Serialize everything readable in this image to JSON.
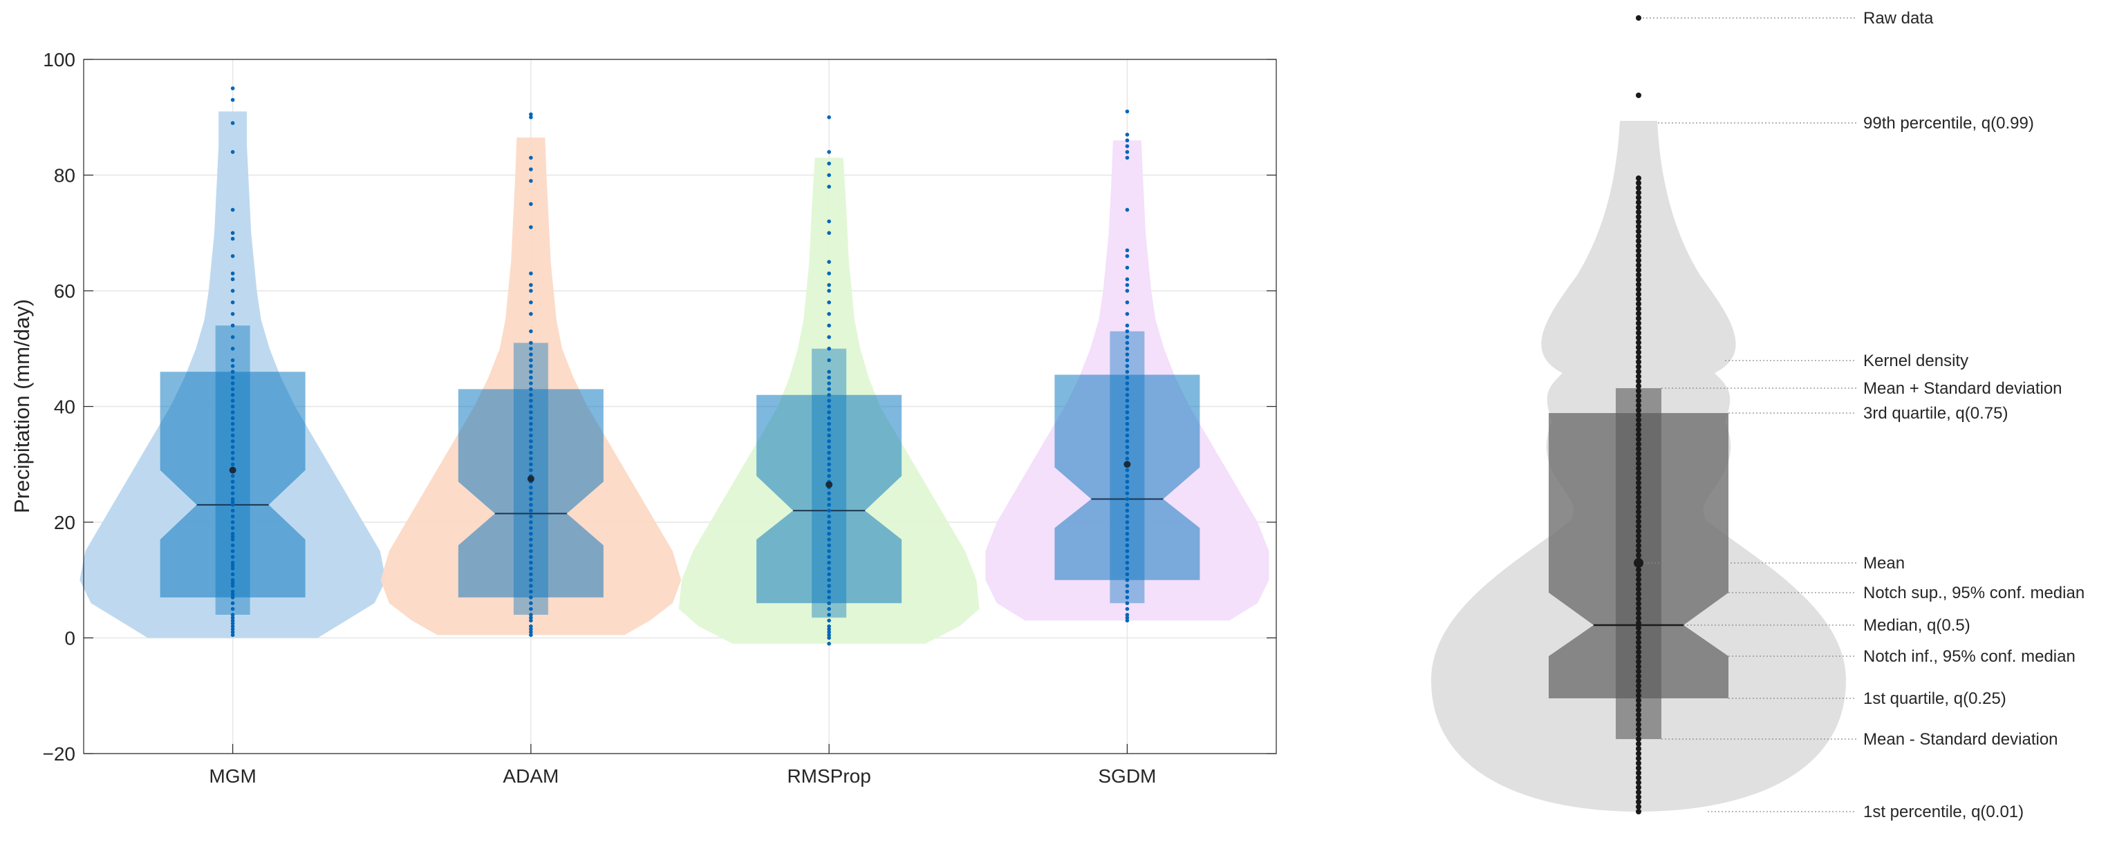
{
  "chart_data": [
    {
      "type": "violin",
      "title": "",
      "xlabel": "",
      "ylabel": "Precipitation (mm/day)",
      "ylim": [
        -20,
        100
      ],
      "yticks": [
        -20,
        0,
        20,
        40,
        60,
        80,
        100
      ],
      "ytick_labels": [
        "−20",
        "0",
        "20",
        "40",
        "60",
        "80",
        "100"
      ],
      "grid": true,
      "categories": [
        "MGM",
        "ADAM",
        "RMSProp",
        "SGDM"
      ],
      "series": [
        {
          "category": "MGM",
          "color": "#0072BD",
          "violin_color": "#BBD7EE",
          "p01": 0,
          "p99": 91,
          "q1": 7,
          "median": 23,
          "q3": 46,
          "notch_low": 17,
          "notch_high": 29,
          "mean": 29,
          "mean_minus_sd": 4,
          "mean_plus_sd": 54,
          "density": [
            [
              0,
              0.3
            ],
            [
              3,
              0.4
            ],
            [
              6,
              0.5
            ],
            [
              10,
              0.54
            ],
            [
              15,
              0.52
            ],
            [
              20,
              0.46
            ],
            [
              25,
              0.4
            ],
            [
              30,
              0.34
            ],
            [
              35,
              0.28
            ],
            [
              40,
              0.22
            ],
            [
              45,
              0.17
            ],
            [
              50,
              0.13
            ],
            [
              55,
              0.1
            ],
            [
              60,
              0.085
            ],
            [
              65,
              0.075
            ],
            [
              70,
              0.065
            ],
            [
              75,
              0.06
            ],
            [
              80,
              0.055
            ],
            [
              85,
              0.05
            ],
            [
              91,
              0.05
            ]
          ],
          "raw_data": [
            0.5,
            1,
            1.5,
            2,
            2.5,
            3,
            3.5,
            4,
            5,
            6,
            7,
            7.5,
            8,
            9,
            9.5,
            10,
            11,
            12,
            12.5,
            13,
            14,
            15,
            16,
            17,
            17.5,
            18,
            19,
            20,
            21,
            22,
            23,
            23.5,
            24,
            25,
            26,
            27,
            28,
            29,
            30,
            31,
            32,
            33,
            34,
            35,
            36,
            37,
            38,
            39,
            40,
            41,
            42,
            43,
            44,
            45,
            46,
            47,
            48,
            50,
            52,
            54,
            56,
            58,
            60,
            62,
            63,
            66,
            69,
            70,
            74,
            84,
            89,
            93,
            95
          ]
        },
        {
          "category": "ADAM",
          "color": "#0072BD",
          "violin_color": "#FCD9C6",
          "p01": 0.5,
          "p99": 86.5,
          "q1": 7,
          "median": 21.5,
          "q3": 43,
          "notch_low": 16,
          "notch_high": 27,
          "mean": 27.5,
          "mean_minus_sd": 4,
          "mean_plus_sd": 51,
          "density": [
            [
              0.5,
              0.33
            ],
            [
              3,
              0.42
            ],
            [
              6,
              0.5
            ],
            [
              10,
              0.53
            ],
            [
              15,
              0.5
            ],
            [
              20,
              0.44
            ],
            [
              25,
              0.38
            ],
            [
              30,
              0.32
            ],
            [
              35,
              0.26
            ],
            [
              40,
              0.2
            ],
            [
              45,
              0.15
            ],
            [
              50,
              0.11
            ],
            [
              55,
              0.09
            ],
            [
              60,
              0.08
            ],
            [
              65,
              0.07
            ],
            [
              70,
              0.065
            ],
            [
              75,
              0.06
            ],
            [
              80,
              0.055
            ],
            [
              86.5,
              0.05
            ]
          ],
          "raw_data": [
            0.5,
            1,
            1.5,
            2,
            3,
            3.5,
            4,
            5,
            6,
            7,
            8,
            9,
            10,
            11,
            12,
            13,
            14,
            15,
            16,
            17,
            18,
            19,
            20,
            21,
            22,
            23,
            24,
            25,
            26,
            27,
            28,
            29,
            30,
            31,
            32,
            33,
            34,
            35,
            36,
            37,
            38,
            39,
            40,
            41,
            42,
            43,
            44,
            45,
            46,
            47,
            48,
            49,
            50,
            51,
            53,
            56,
            58,
            60,
            61,
            63,
            71,
            75,
            79,
            81,
            83,
            90,
            90.5
          ]
        },
        {
          "category": "RMSProp",
          "color": "#0072BD",
          "violin_color": "#E0F7D4",
          "p01": -1,
          "p99": 83,
          "q1": 6,
          "median": 22,
          "q3": 42,
          "notch_low": 17,
          "notch_high": 28,
          "mean": 26.5,
          "mean_minus_sd": 3.5,
          "mean_plus_sd": 50,
          "density": [
            [
              -1,
              0.34
            ],
            [
              2,
              0.46
            ],
            [
              5,
              0.53
            ],
            [
              10,
              0.52
            ],
            [
              15,
              0.48
            ],
            [
              20,
              0.42
            ],
            [
              25,
              0.36
            ],
            [
              30,
              0.3
            ],
            [
              35,
              0.24
            ],
            [
              40,
              0.18
            ],
            [
              45,
              0.14
            ],
            [
              50,
              0.11
            ],
            [
              55,
              0.09
            ],
            [
              60,
              0.08
            ],
            [
              65,
              0.07
            ],
            [
              70,
              0.065
            ],
            [
              75,
              0.06
            ],
            [
              83,
              0.05
            ]
          ],
          "raw_data": [
            -1,
            0,
            0.5,
            1,
            1.5,
            2,
            3,
            4,
            5,
            6,
            7,
            8,
            9,
            10,
            11,
            12,
            13,
            14,
            15,
            16,
            17,
            18,
            19,
            20,
            21,
            22,
            23,
            24,
            25,
            26,
            27,
            28,
            29,
            30,
            31,
            32,
            33,
            34,
            35,
            36,
            37,
            38,
            39,
            40,
            41,
            42,
            43,
            44,
            45,
            46,
            48,
            50,
            52,
            54,
            56,
            58,
            60,
            61,
            63,
            65,
            70,
            72,
            78,
            80,
            82,
            84,
            90
          ]
        },
        {
          "category": "SGDM",
          "color": "#0072BD",
          "violin_color": "#F3DEFB",
          "p01": 3,
          "p99": 86,
          "q1": 10,
          "median": 24,
          "q3": 45.5,
          "notch_low": 19,
          "notch_high": 29.5,
          "mean": 30,
          "mean_minus_sd": 6,
          "mean_plus_sd": 53,
          "density": [
            [
              3,
              0.36
            ],
            [
              6,
              0.46
            ],
            [
              10,
              0.5
            ],
            [
              15,
              0.5
            ],
            [
              20,
              0.46
            ],
            [
              25,
              0.4
            ],
            [
              30,
              0.34
            ],
            [
              35,
              0.28
            ],
            [
              40,
              0.22
            ],
            [
              45,
              0.17
            ],
            [
              50,
              0.13
            ],
            [
              55,
              0.1
            ],
            [
              60,
              0.085
            ],
            [
              65,
              0.075
            ],
            [
              70,
              0.065
            ],
            [
              75,
              0.06
            ],
            [
              80,
              0.055
            ],
            [
              86,
              0.05
            ]
          ],
          "raw_data": [
            3,
            3.5,
            4,
            5,
            6,
            7,
            8,
            9,
            10,
            11,
            12,
            13,
            14,
            15,
            16,
            17,
            18,
            19,
            20,
            21,
            22,
            23,
            24,
            25,
            26,
            27,
            28,
            29,
            30,
            31,
            32,
            33,
            34,
            35,
            36,
            37,
            38,
            39,
            40,
            41,
            42,
            43,
            44,
            45,
            46,
            47,
            48,
            49,
            50,
            51,
            52,
            53,
            54,
            56,
            58,
            60,
            61,
            62,
            64,
            66,
            67,
            74,
            83,
            84,
            85,
            86,
            87,
            91
          ]
        }
      ]
    },
    {
      "type": "violin-legend",
      "labels": {
        "raw_data": "Raw data",
        "p99": "99th percentile, q(0.99)",
        "kernel_density": "Kernel density",
        "mean_plus_sd": "Mean + Standard deviation",
        "q3": "3rd quartile, q(0.75)",
        "mean": "Mean",
        "notch_sup": "Notch sup., 95% conf. median",
        "median": "Median, q(0.5)",
        "notch_inf": "Notch inf., 95% conf. median",
        "q1": "1st quartile, q(0.25)",
        "mean_minus_sd": "Mean - Standard deviation",
        "p01": "1st percentile, q(0.01)"
      }
    }
  ],
  "colors": {
    "box_blue": "#0072BD",
    "gray_violin": "#E0E0E0",
    "gray_box": "#777777",
    "grid": "#E6E6E6",
    "axis": "#262626"
  }
}
